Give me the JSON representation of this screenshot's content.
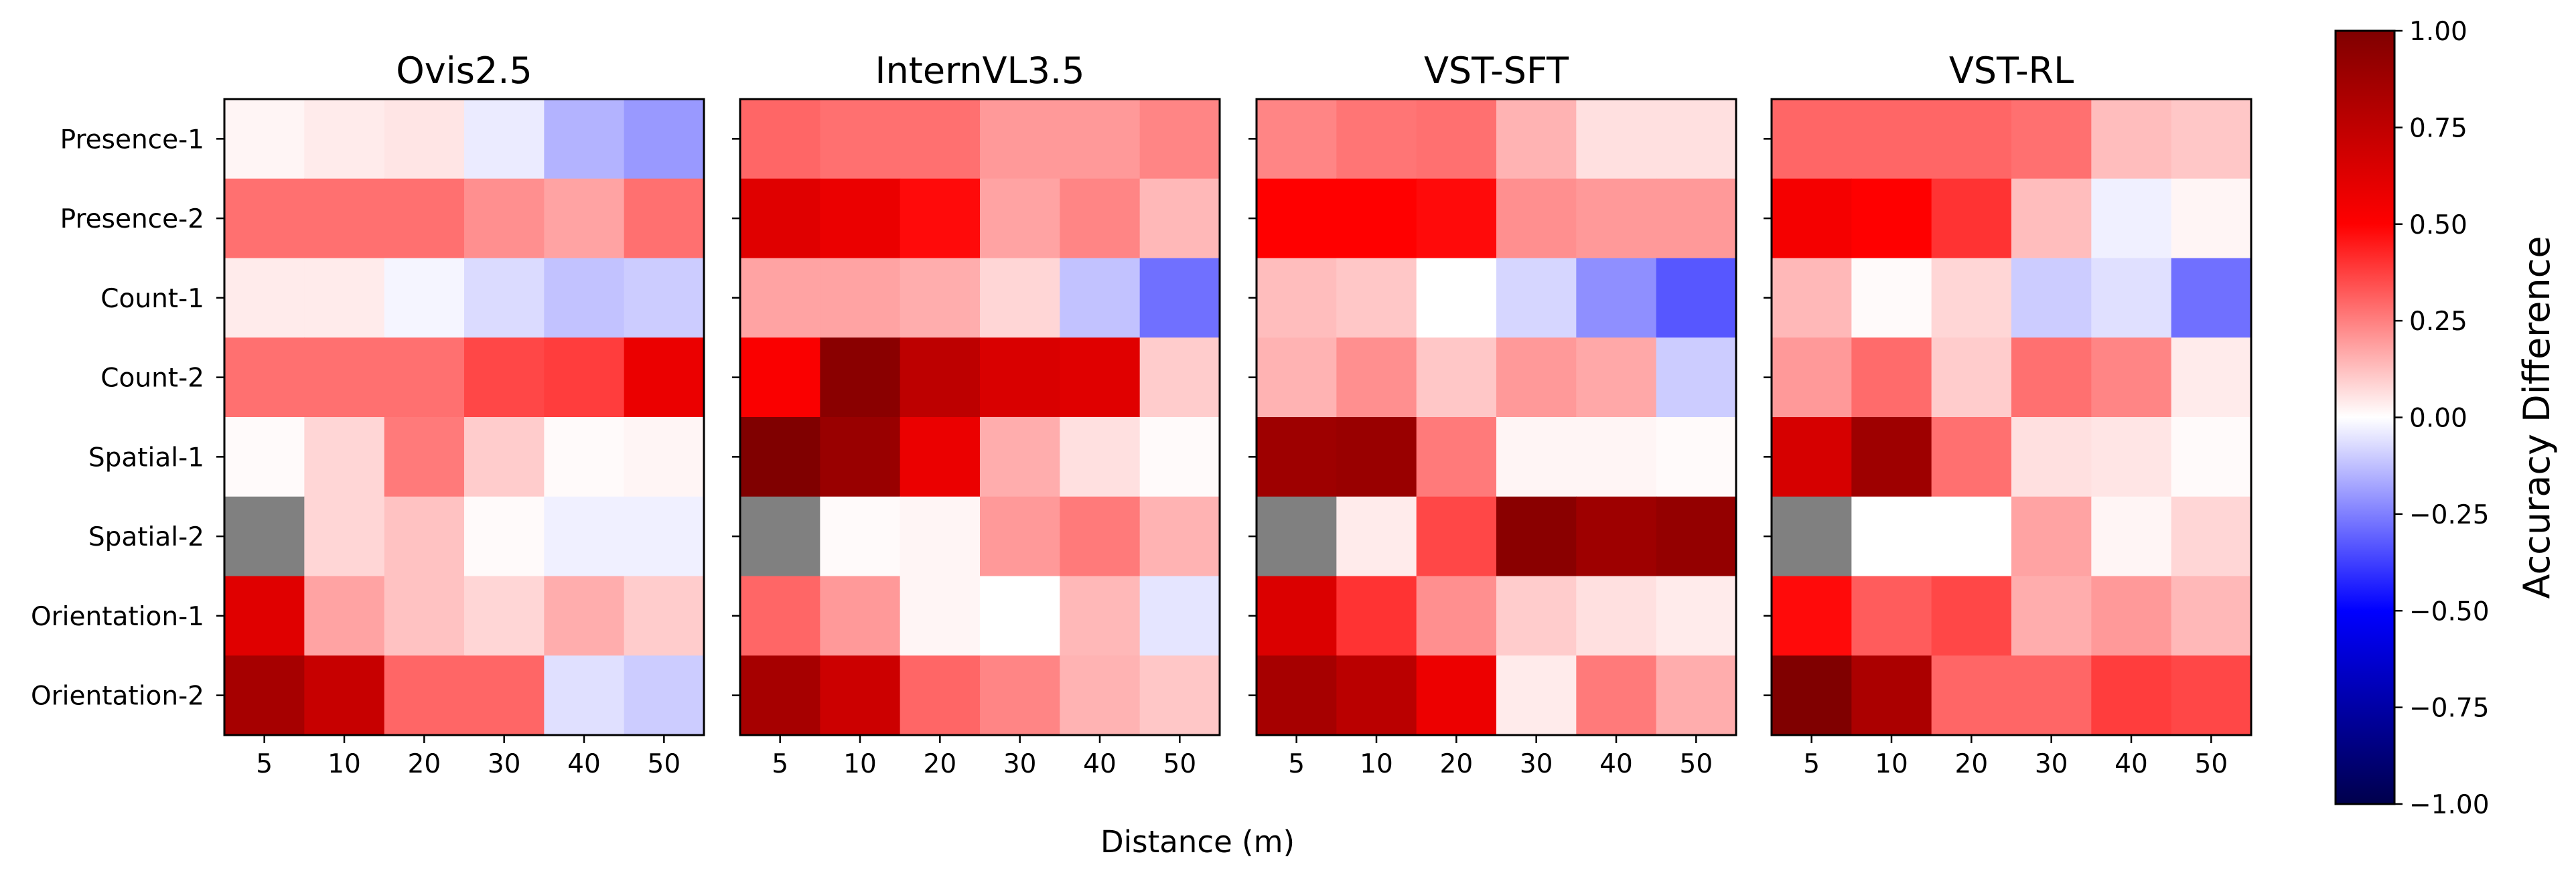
{
  "chart_data": {
    "type": "heatmap",
    "xlabel": "Distance (m)",
    "x_categories": [
      "5",
      "10",
      "20",
      "30",
      "40",
      "50"
    ],
    "y_categories": [
      "Presence-1",
      "Presence-2",
      "Count-1",
      "Count-2",
      "Spatial-1",
      "Spatial-2",
      "Orientation-1",
      "Orientation-2"
    ],
    "colorbar": {
      "label": "Accuracy Difference",
      "range": [
        -1.0,
        1.0
      ],
      "ticks": [
        "1.00",
        "0.75",
        "0.50",
        "0.25",
        "0.00",
        "−0.25",
        "−0.50",
        "−0.75",
        "−1.00"
      ],
      "tick_values": [
        1.0,
        0.75,
        0.5,
        0.25,
        0.0,
        -0.25,
        -0.5,
        -0.75,
        -1.0
      ],
      "colormap": "seismic"
    },
    "missing_color": "#808080",
    "panels": [
      {
        "title": "Ovis2.5",
        "values": [
          [
            0.02,
            0.04,
            0.05,
            -0.04,
            -0.15,
            -0.2
          ],
          [
            0.28,
            0.28,
            0.28,
            0.22,
            0.18,
            0.28
          ],
          [
            0.04,
            0.04,
            -0.02,
            -0.07,
            -0.12,
            -0.1
          ],
          [
            0.28,
            0.28,
            0.28,
            0.36,
            0.38,
            0.58
          ],
          [
            0.01,
            0.08,
            0.26,
            0.1,
            0.01,
            0.02
          ],
          [
            null,
            0.08,
            0.12,
            0.01,
            -0.03,
            -0.03
          ],
          [
            0.62,
            0.18,
            0.12,
            0.08,
            0.16,
            0.1
          ],
          [
            0.85,
            0.72,
            0.3,
            0.3,
            -0.06,
            -0.1
          ]
        ]
      },
      {
        "title": "InternVL3.5",
        "values": [
          [
            0.3,
            0.28,
            0.28,
            0.2,
            0.2,
            0.24
          ],
          [
            0.62,
            0.58,
            0.48,
            0.18,
            0.24,
            0.14
          ],
          [
            0.18,
            0.18,
            0.16,
            0.08,
            -0.12,
            -0.28
          ],
          [
            0.52,
            0.96,
            0.76,
            0.65,
            0.62,
            0.1
          ],
          [
            1.0,
            0.9,
            0.58,
            0.16,
            0.06,
            0.01
          ],
          [
            null,
            0.01,
            0.02,
            0.2,
            0.26,
            0.15
          ],
          [
            0.3,
            0.2,
            0.02,
            0.0,
            0.14,
            -0.05
          ],
          [
            0.85,
            0.7,
            0.3,
            0.24,
            0.15,
            0.11
          ]
        ]
      },
      {
        "title": "VST-SFT",
        "values": [
          [
            0.24,
            0.27,
            0.28,
            0.15,
            0.06,
            0.06
          ],
          [
            0.5,
            0.5,
            0.48,
            0.22,
            0.2,
            0.2
          ],
          [
            0.13,
            0.11,
            0.0,
            -0.08,
            -0.22,
            -0.33
          ],
          [
            0.15,
            0.22,
            0.11,
            0.2,
            0.17,
            -0.1
          ],
          [
            0.88,
            0.9,
            0.26,
            0.02,
            0.02,
            0.01
          ],
          [
            null,
            0.04,
            0.36,
            0.96,
            0.88,
            0.92
          ],
          [
            0.64,
            0.4,
            0.22,
            0.1,
            0.06,
            0.04
          ],
          [
            0.85,
            0.77,
            0.57,
            0.04,
            0.26,
            0.16
          ]
        ]
      },
      {
        "title": "VST-RL",
        "values": [
          [
            0.3,
            0.3,
            0.3,
            0.28,
            0.13,
            0.11
          ],
          [
            0.54,
            0.5,
            0.4,
            0.13,
            -0.03,
            0.02
          ],
          [
            0.14,
            0.01,
            0.08,
            -0.1,
            -0.06,
            -0.28
          ],
          [
            0.2,
            0.29,
            0.1,
            0.28,
            0.24,
            0.04
          ],
          [
            0.66,
            0.88,
            0.28,
            0.06,
            0.05,
            0.01
          ],
          [
            null,
            0.0,
            0.0,
            0.18,
            0.02,
            0.08
          ],
          [
            0.48,
            0.32,
            0.36,
            0.16,
            0.2,
            0.14
          ],
          [
            1.0,
            0.83,
            0.3,
            0.3,
            0.38,
            0.36
          ]
        ]
      }
    ]
  }
}
